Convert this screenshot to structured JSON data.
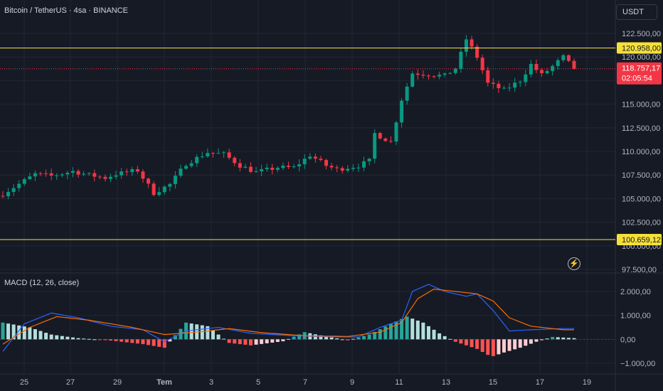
{
  "header": {
    "title": "Bitcoin / TetherUS · 4sa · BINANCE",
    "currency": "USDT"
  },
  "price_axis": {
    "labels": [
      "122.500,00",
      "120.000,00",
      "117.500,00",
      "115.000,00",
      "112.500,00",
      "110.000,00",
      "107.500,00",
      "105.000,00",
      "102.500,00",
      "100.000,00",
      "97.500,00"
    ],
    "values": [
      122500,
      120000,
      117500,
      115000,
      112500,
      110000,
      107500,
      105000,
      102500,
      100000,
      97500
    ]
  },
  "levels": {
    "upper": {
      "label": "120.958,00",
      "value": 120958,
      "color": "#f5e03a"
    },
    "lower": {
      "label": "100.659,12",
      "value": 100659.12,
      "color": "#f5e03a"
    }
  },
  "current_price": {
    "label": "118.757,17",
    "countdown": "02:05:54",
    "value": 118757.17,
    "color": "#f23645"
  },
  "macd": {
    "title": "MACD (12, 26, close)",
    "axis_labels": [
      "2.000,00",
      "1.000,00",
      "0,00",
      "−1.000,00"
    ],
    "axis_values": [
      2000,
      1000,
      0,
      -1000
    ]
  },
  "time_axis": {
    "labels": [
      "25",
      "27",
      "29",
      "Tem",
      "3",
      "5",
      "7",
      "9",
      "11",
      "13",
      "15",
      "17",
      "19"
    ]
  },
  "colors": {
    "up": "#089981",
    "down": "#f23645",
    "macd_line": "#2962ff",
    "signal_line": "#ff6d00",
    "hist_up_strong": "#26a69a",
    "hist_up_weak": "#b2dfdb",
    "hist_down_strong": "#ff5252",
    "hist_down_weak": "#ffcdd2"
  },
  "icons": {
    "replay": "lightning-icon"
  },
  "chart_data": [
    {
      "type": "candlestick",
      "title": "Bitcoin / TetherUS · 4sa · BINANCE",
      "x_labels": [
        "25",
        "27",
        "29",
        "Tem",
        "3",
        "5",
        "7",
        "9",
        "11",
        "13",
        "15",
        "17",
        "19"
      ],
      "ylim": [
        96500,
        123500
      ],
      "close_path": [
        [
          0,
          105500
        ],
        [
          6,
          107600
        ],
        [
          9,
          107400
        ],
        [
          13,
          107900
        ],
        [
          16,
          107500
        ],
        [
          19,
          107200
        ],
        [
          21,
          107600
        ],
        [
          25,
          108000
        ],
        [
          28,
          105600
        ],
        [
          31,
          106500
        ],
        [
          34,
          108700
        ],
        [
          38,
          109900
        ],
        [
          41,
          109700
        ],
        [
          44,
          108500
        ],
        [
          47,
          107800
        ],
        [
          51,
          108300
        ],
        [
          54,
          108300
        ],
        [
          57,
          109600
        ],
        [
          60,
          108500
        ],
        [
          62,
          108100
        ],
        [
          66,
          108500
        ],
        [
          68,
          109000
        ],
        [
          69,
          111900
        ],
        [
          72,
          111000
        ],
        [
          74,
          115500
        ],
        [
          76,
          118300
        ],
        [
          82,
          118000
        ],
        [
          84,
          118800
        ],
        [
          86,
          121900
        ],
        [
          88,
          120000
        ],
        [
          90,
          117200
        ],
        [
          93,
          116500
        ],
        [
          96,
          117500
        ],
        [
          98,
          119200
        ],
        [
          100,
          118100
        ],
        [
          102,
          119000
        ],
        [
          104,
          120000
        ],
        [
          106,
          118757
        ]
      ],
      "current_price": 118757.17,
      "levels": [
        120958,
        100659.12
      ]
    },
    {
      "type": "line",
      "title": "MACD (12, 26, close)",
      "ylim": [
        -1200,
        2600
      ],
      "series": [
        {
          "name": "MACD",
          "points": [
            [
              0,
              -500
            ],
            [
              4,
              650
            ],
            [
              9,
              1100
            ],
            [
              14,
              900
            ],
            [
              20,
              550
            ],
            [
              26,
              400
            ],
            [
              30,
              -100
            ],
            [
              34,
              350
            ],
            [
              40,
              500
            ],
            [
              46,
              250
            ],
            [
              54,
              150
            ],
            [
              62,
              100
            ],
            [
              66,
              100
            ],
            [
              70,
              500
            ],
            [
              74,
              800
            ],
            [
              76,
              2000
            ],
            [
              79,
              2300
            ],
            [
              82,
              2000
            ],
            [
              86,
              1800
            ],
            [
              88,
              1900
            ],
            [
              91,
              1200
            ],
            [
              94,
              350
            ],
            [
              98,
              400
            ],
            [
              104,
              450
            ],
            [
              106,
              450
            ]
          ]
        },
        {
          "name": "Signal",
          "points": [
            [
              0,
              -200
            ],
            [
              5,
              500
            ],
            [
              10,
              950
            ],
            [
              16,
              800
            ],
            [
              24,
              500
            ],
            [
              30,
              200
            ],
            [
              36,
              300
            ],
            [
              42,
              450
            ],
            [
              48,
              280
            ],
            [
              56,
              150
            ],
            [
              64,
              120
            ],
            [
              70,
              300
            ],
            [
              74,
              700
            ],
            [
              77,
              1700
            ],
            [
              80,
              2100
            ],
            [
              84,
              2000
            ],
            [
              88,
              1900
            ],
            [
              91,
              1600
            ],
            [
              94,
              900
            ],
            [
              98,
              550
            ],
            [
              104,
              400
            ],
            [
              106,
              400
            ]
          ]
        }
      ],
      "histogram": [
        [
          0,
          700
        ],
        [
          5,
          500
        ],
        [
          9,
          200
        ],
        [
          14,
          50
        ],
        [
          20,
          -50
        ],
        [
          26,
          -200
        ],
        [
          30,
          -350
        ],
        [
          34,
          700
        ],
        [
          38,
          550
        ],
        [
          42,
          -150
        ],
        [
          46,
          -250
        ],
        [
          52,
          -80
        ],
        [
          56,
          300
        ],
        [
          60,
          120
        ],
        [
          64,
          -40
        ],
        [
          68,
          200
        ],
        [
          72,
          650
        ],
        [
          75,
          950
        ],
        [
          78,
          700
        ],
        [
          81,
          250
        ],
        [
          84,
          -100
        ],
        [
          88,
          -400
        ],
        [
          90,
          -650
        ],
        [
          91,
          -700
        ],
        [
          93,
          -550
        ],
        [
          96,
          -350
        ],
        [
          99,
          -100
        ],
        [
          102,
          100
        ],
        [
          106,
          50
        ]
      ]
    }
  ]
}
